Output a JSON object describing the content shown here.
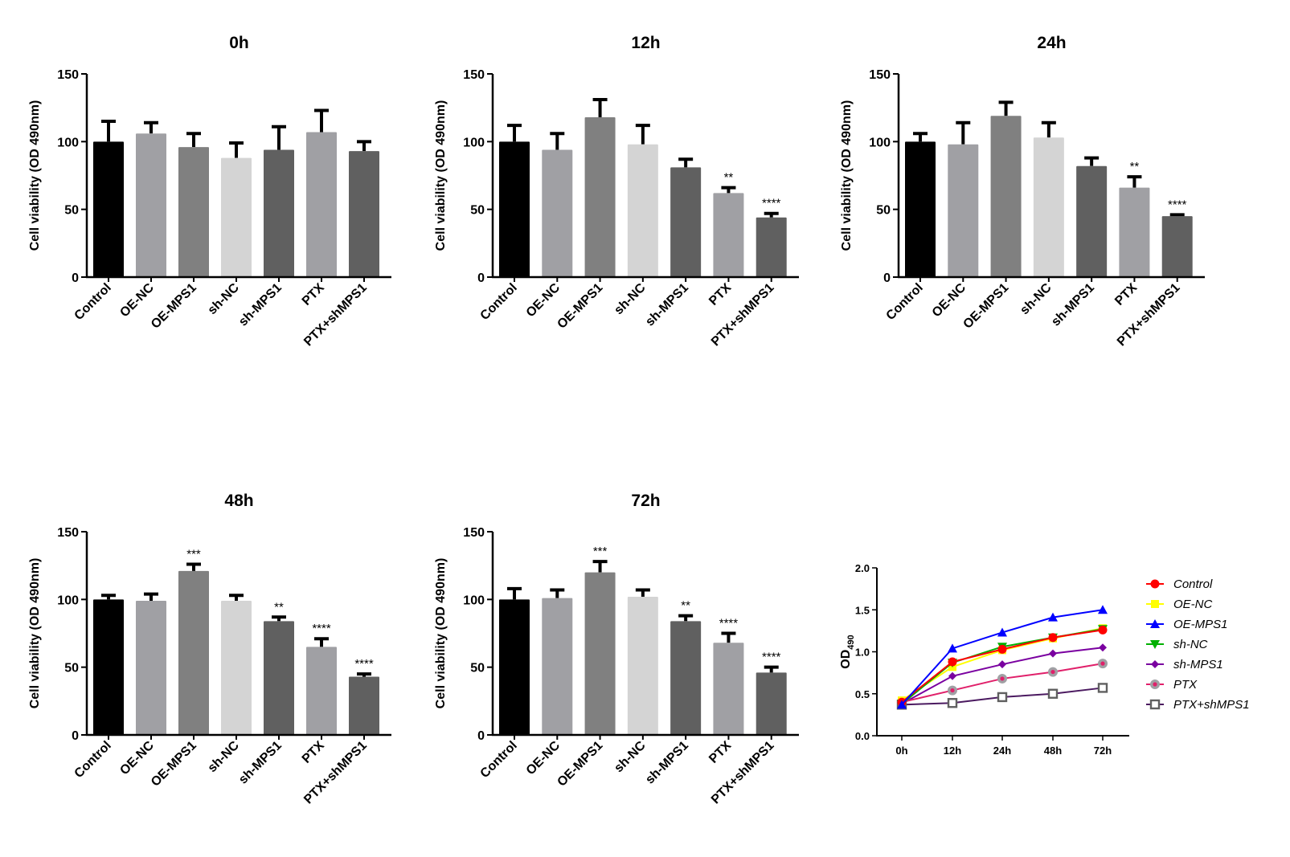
{
  "chart_data": [
    {
      "type": "bar",
      "title": "0h",
      "xlabel": "",
      "ylabel": "Cell viability (OD 490nm)",
      "ylim": [
        0,
        150
      ],
      "yticks": [
        "0",
        "50",
        "100",
        "150"
      ],
      "categories": [
        "Control",
        "OE-NC",
        "OE-MPS1",
        "sh-NC",
        "sh-MPS1",
        "PTX",
        "PTX+shMPS1"
      ],
      "values": [
        100,
        106,
        96,
        88,
        94,
        107,
        93
      ],
      "error_upper": [
        115,
        114,
        106,
        99,
        111,
        123,
        100
      ],
      "significance": [
        "",
        "",
        "",
        "",
        "",
        "",
        ""
      ]
    },
    {
      "type": "bar",
      "title": "12h",
      "xlabel": "",
      "ylabel": "Cell viability (OD 490nm)",
      "ylim": [
        0,
        150
      ],
      "yticks": [
        "0",
        "50",
        "100",
        "150"
      ],
      "categories": [
        "Control",
        "OE-NC",
        "OE-MPS1",
        "sh-NC",
        "sh-MPS1",
        "PTX",
        "PTX+shMPS1"
      ],
      "values": [
        100,
        94,
        118,
        98,
        81,
        62,
        44
      ],
      "error_upper": [
        112,
        106,
        131,
        112,
        87,
        66,
        47
      ],
      "significance": [
        "",
        "",
        "",
        "",
        "",
        "**",
        "****"
      ]
    },
    {
      "type": "bar",
      "title": "24h",
      "xlabel": "",
      "ylabel": "Cell viability (OD 490nm)",
      "ylim": [
        0,
        150
      ],
      "yticks": [
        "0",
        "50",
        "100",
        "150"
      ],
      "categories": [
        "Control",
        "OE-NC",
        "OE-MPS1",
        "sh-NC",
        "sh-MPS1",
        "PTX",
        "PTX+shMPS1"
      ],
      "values": [
        100,
        98,
        119,
        103,
        82,
        66,
        45
      ],
      "error_upper": [
        106,
        114,
        129,
        114,
        88,
        74,
        46
      ],
      "significance": [
        "",
        "",
        "",
        "",
        "",
        "**",
        "****"
      ]
    },
    {
      "type": "bar",
      "title": "48h",
      "xlabel": "",
      "ylabel": "Cell viability (OD 490nm)",
      "ylim": [
        0,
        150
      ],
      "yticks": [
        "0",
        "50",
        "100",
        "150"
      ],
      "categories": [
        "Control",
        "OE-NC",
        "OE-MPS1",
        "sh-NC",
        "sh-MPS1",
        "PTX",
        "PTX+shMPS1"
      ],
      "values": [
        100,
        99,
        121,
        99,
        84,
        65,
        43
      ],
      "error_upper": [
        103,
        104,
        126,
        103,
        87,
        71,
        45
      ],
      "significance": [
        "",
        "",
        "***",
        "",
        "**",
        "****",
        "****"
      ]
    },
    {
      "type": "bar",
      "title": "72h",
      "xlabel": "",
      "ylabel": "Cell viability (OD 490nm)",
      "ylim": [
        0,
        150
      ],
      "yticks": [
        "0",
        "50",
        "100",
        "150"
      ],
      "categories": [
        "Control",
        "OE-NC",
        "OE-MPS1",
        "sh-NC",
        "sh-MPS1",
        "PTX",
        "PTX+shMPS1"
      ],
      "values": [
        100,
        101,
        120,
        102,
        84,
        68,
        46
      ],
      "error_upper": [
        108,
        107,
        128,
        107,
        88,
        75,
        50
      ],
      "significance": [
        "",
        "",
        "***",
        "",
        "**",
        "****",
        "****"
      ]
    },
    {
      "type": "line",
      "title": "",
      "xlabel": "",
      "ylabel": "OD",
      "ylabel_subscript": "490",
      "ylim": [
        0,
        2.0
      ],
      "yticks": [
        "0.0",
        "0.5",
        "1.0",
        "1.5",
        "2.0"
      ],
      "x": [
        "0h",
        "12h",
        "24h",
        "48h",
        "72h"
      ],
      "legend_position": "right",
      "series": [
        {
          "name": "Control",
          "color": "#ff0000",
          "marker": "circle",
          "values": [
            0.4,
            0.88,
            1.03,
            1.17,
            1.26
          ]
        },
        {
          "name": "OE-NC",
          "color": "#ffff00",
          "marker": "square",
          "values": [
            0.42,
            0.82,
            1.02,
            1.16,
            1.28
          ]
        },
        {
          "name": "OE-MPS1",
          "color": "#0000ff",
          "marker": "triangle-up",
          "values": [
            0.37,
            1.04,
            1.23,
            1.41,
            1.5
          ]
        },
        {
          "name": "sh-NC",
          "color": "#00b000",
          "marker": "triangle-down",
          "values": [
            0.38,
            0.87,
            1.06,
            1.17,
            1.27
          ]
        },
        {
          "name": "sh-MPS1",
          "color": "#7a00a0",
          "marker": "diamond",
          "values": [
            0.38,
            0.71,
            0.85,
            0.98,
            1.05
          ]
        },
        {
          "name": "PTX",
          "color": "#e0206a",
          "marker": "ringed-circle",
          "values": [
            0.4,
            0.54,
            0.68,
            0.76,
            0.86
          ]
        },
        {
          "name": "PTX+shMPS1",
          "color": "#4b1a60",
          "marker": "open-square",
          "values": [
            0.37,
            0.39,
            0.46,
            0.5,
            0.57
          ]
        }
      ]
    }
  ],
  "bar_colors": [
    "#000000",
    "#a0a0a4",
    "#808080",
    "#d4d4d4",
    "#606060",
    "#a0a0a4",
    "#606060"
  ]
}
